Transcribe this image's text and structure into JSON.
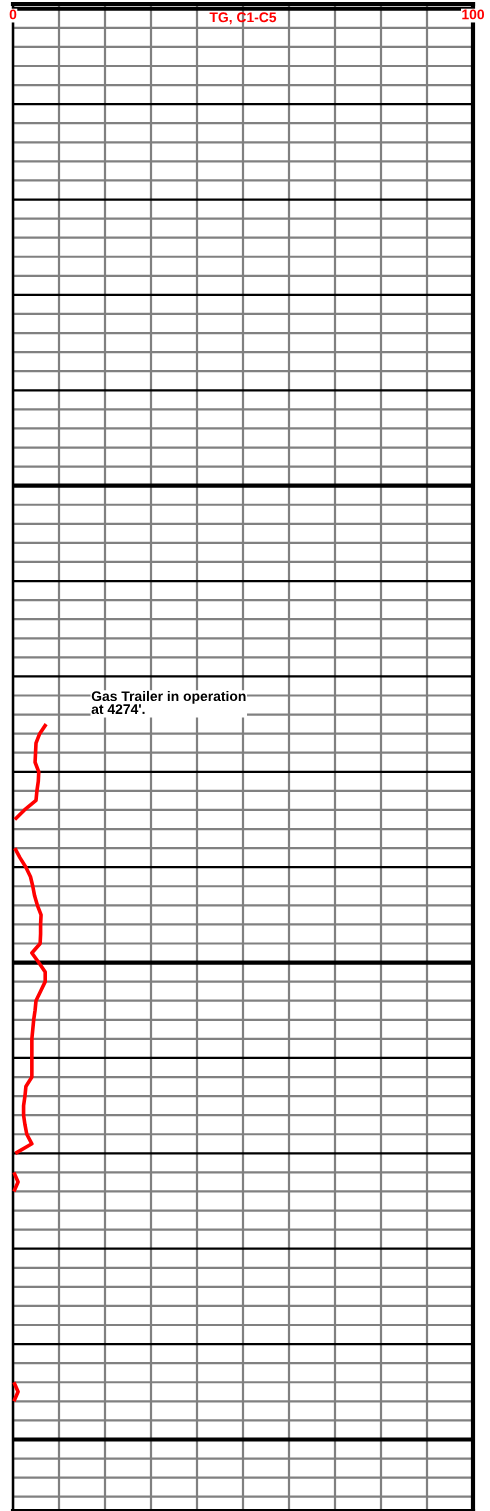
{
  "chart_data": {
    "type": "line",
    "orientation": "horizontal",
    "xlabel": "TG, C1-C5",
    "categories": [
      null,
      null,
      null,
      null,
      null,
      null,
      null,
      null,
      null,
      null,
      null,
      null,
      null,
      null,
      null,
      null,
      null,
      null,
      null,
      null,
      null,
      null,
      null,
      null,
      null,
      null,
      null,
      null,
      null,
      null,
      null,
      null,
      null,
      null,
      null,
      null,
      null,
      null,
      null,
      null,
      null,
      null,
      null,
      null,
      null,
      null,
      null,
      null,
      null,
      null,
      null,
      null,
      null,
      null,
      null,
      null,
      null,
      null,
      null,
      null,
      null,
      null,
      null,
      null,
      null,
      null,
      null,
      null,
      null,
      null,
      null,
      null,
      null,
      null,
      null,
      null,
      null,
      null,
      null,
      null,
      null,
      null,
      null,
      null,
      null,
      null,
      null,
      null,
      null,
      null,
      null,
      null,
      null,
      null,
      null,
      null,
      null,
      null,
      null,
      null,
      null,
      null,
      null,
      null,
      null,
      null,
      null,
      null,
      null,
      null,
      null,
      null,
      null,
      null,
      null,
      null,
      null,
      null,
      null,
      null,
      null,
      null,
      null,
      null,
      null,
      null,
      null,
      null,
      null,
      null,
      null,
      null,
      null,
      null,
      null,
      null,
      null,
      null,
      null,
      null,
      null,
      null,
      null,
      null,
      null,
      null,
      null,
      null,
      null,
      null,
      null,
      null,
      null,
      null,
      null,
      null,
      null,
      null
    ],
    "series": [
      {
        "color": "#ff0000",
        "values": [
          null,
          null,
          null,
          null,
          null,
          null,
          null,
          null,
          null,
          null,
          null,
          null,
          null,
          null,
          null,
          null,
          null,
          null,
          null,
          null,
          null,
          null,
          null,
          null,
          null,
          null,
          null,
          null,
          null,
          null,
          null,
          null,
          null,
          null,
          null,
          null,
          null,
          null,
          null,
          null,
          null,
          null,
          null,
          null,
          null,
          null,
          null,
          null,
          null,
          null,
          null,
          null,
          null,
          null,
          null,
          null,
          null,
          null,
          null,
          null,
          null,
          null,
          null,
          null,
          null,
          null,
          null,
          null,
          null,
          null,
          null,
          null,
          null,
          null,
          null,
          7.2,
          5.8,
          5.0,
          4.9,
          4.8,
          5.6,
          5.5,
          5.2,
          5.0,
          2.5,
          0.4,
          null,
          null,
          0.4,
          1.5,
          2.8,
          3.8,
          4.3,
          4.7,
          5.3,
          6.1,
          6.0,
          6.0,
          5.9,
          4.1,
          5.6,
          7.0,
          7.0,
          6.0,
          5.0,
          4.8,
          4.5,
          4.3,
          4.1,
          4.1,
          4.1,
          4.1,
          4.1,
          2.8,
          2.6,
          2.3,
          2.3,
          2.6,
          3.0,
          4.1,
          0.5,
          null,
          0.2,
          1.1,
          0.2,
          null,
          null,
          null,
          null,
          null,
          null,
          null,
          null,
          null,
          null,
          null,
          null,
          null,
          null,
          null,
          null,
          null,
          null,
          null,
          0.2,
          1.1,
          0.2,
          null,
          null,
          null,
          null,
          null,
          null,
          null,
          null,
          null,
          null,
          null
        ]
      }
    ],
    "xlim": [
      0,
      100
    ],
    "xticks": [
      0,
      {
        "value": 10,
        "label": null
      },
      {
        "value": 20,
        "label": null
      },
      {
        "value": 30,
        "label": null
      },
      {
        "value": 40,
        "label": null
      },
      {
        "value": 50,
        "label": null
      },
      {
        "value": 60,
        "label": null
      },
      {
        "value": 70,
        "label": null
      },
      {
        "value": 80,
        "label": null
      },
      {
        "value": 90,
        "label": null
      },
      100
    ],
    "grid": true,
    "tick_labels": "x",
    "annotations": [
      "Gas Trailer in operation\nat 4274'."
    ]
  }
}
